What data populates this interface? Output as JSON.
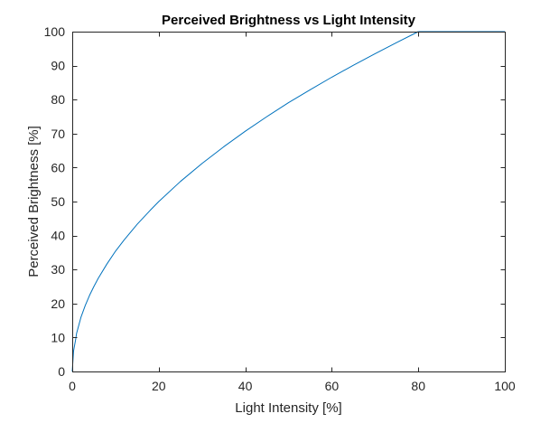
{
  "chart_data": {
    "type": "line",
    "title": "Perceived Brightness vs Light Intensity",
    "xlabel": "Light Intensity [%]",
    "ylabel": "Perceived Brightness [%]",
    "xlim": [
      0,
      100
    ],
    "ylim": [
      0,
      100
    ],
    "xticks": [
      0,
      20,
      40,
      60,
      80,
      100
    ],
    "yticks": [
      0,
      10,
      20,
      30,
      40,
      50,
      60,
      70,
      80,
      90,
      100
    ],
    "xtick_labels": [
      "0",
      "20",
      "40",
      "60",
      "80",
      "100"
    ],
    "ytick_labels": [
      "0",
      "10",
      "20",
      "30",
      "40",
      "50",
      "60",
      "70",
      "80",
      "90",
      "100"
    ],
    "grid": false,
    "box": true,
    "series": [
      {
        "color": "#0072bd",
        "x": [
          0,
          0.3,
          0.8,
          1,
          2,
          3,
          4,
          5,
          6,
          8,
          10,
          12,
          15,
          18,
          20,
          25,
          30,
          35,
          40,
          45,
          50,
          55,
          60,
          65,
          70,
          75,
          80,
          85,
          90,
          95,
          100
        ],
        "y": [
          0,
          6,
          9.5,
          11.2,
          15.9,
          19.4,
          22.4,
          25.0,
          27.4,
          31.6,
          35.4,
          38.7,
          43.3,
          47.4,
          50.0,
          55.9,
          61.2,
          66.1,
          70.7,
          75.0,
          79.1,
          82.9,
          86.6,
          90.1,
          93.5,
          96.8,
          100.0,
          100.0,
          100.0,
          100.0,
          100.0
        ]
      }
    ]
  }
}
